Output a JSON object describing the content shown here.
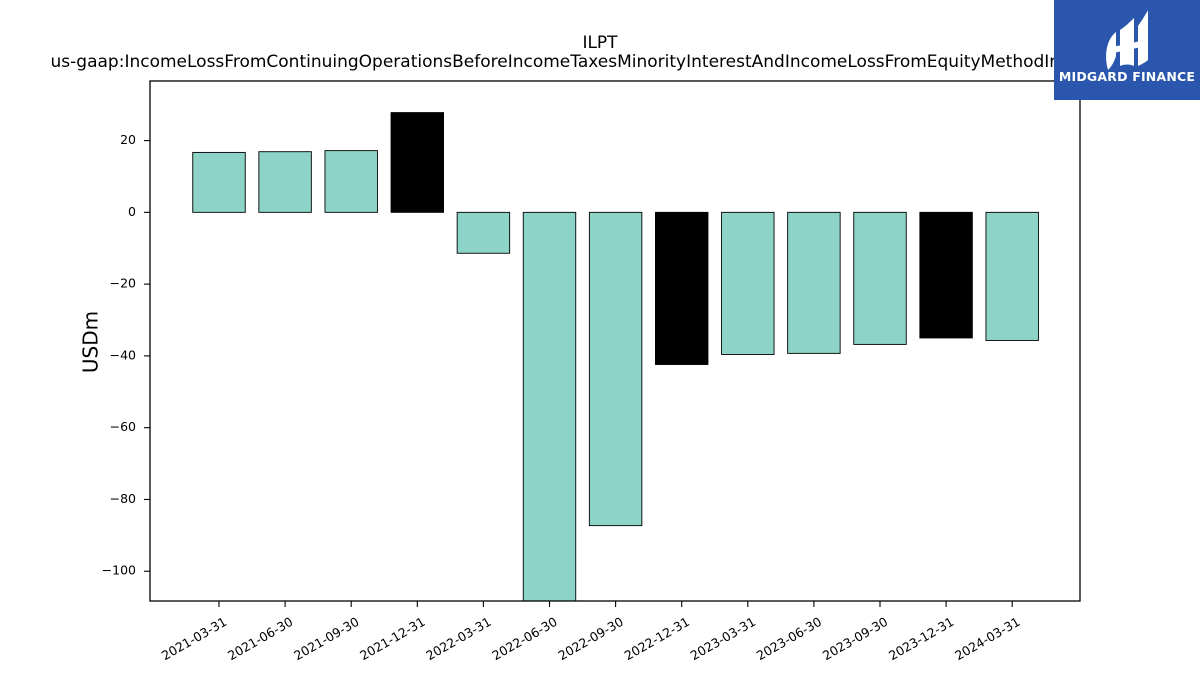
{
  "chart_data": {
    "type": "bar",
    "title": "ILPT",
    "subtitle": "us-gaap:IncomeLossFromContinuingOperationsBeforeIncomeTaxesMinorityInterestAndIncomeLossFromEquityMethodInvestments",
    "xlabel": "",
    "ylabel": "USDm",
    "categories": [
      "2021-03-31",
      "2021-06-30",
      "2021-09-30",
      "2021-12-31",
      "2022-03-31",
      "2022-06-30",
      "2022-09-30",
      "2022-12-31",
      "2023-03-31",
      "2023-06-30",
      "2023-09-30",
      "2023-12-31",
      "2024-03-31"
    ],
    "values": [
      16.7,
      16.9,
      17.2,
      27.8,
      -11.4,
      -109.0,
      -87.3,
      -42.4,
      -39.6,
      -39.3,
      -36.8,
      -35.0,
      -35.7
    ],
    "bar_colors": [
      "#8dd3c7",
      "#8dd3c7",
      "#8dd3c7",
      "#000000",
      "#8dd3c7",
      "#8dd3c7",
      "#8dd3c7",
      "#000000",
      "#8dd3c7",
      "#8dd3c7",
      "#8dd3c7",
      "#000000",
      "#8dd3c7"
    ],
    "ylim": [
      -108.3,
      36.6
    ],
    "yticks": [
      20,
      0,
      -20,
      -40,
      -60,
      -80,
      -100
    ],
    "ytick_labels": [
      "20",
      "0",
      "−20",
      "−40",
      "−60",
      "−80",
      "−100"
    ],
    "grid": false,
    "legend": "none"
  },
  "logo": {
    "text": "MIDGARD FINANCE",
    "background": "#2a56ad"
  }
}
